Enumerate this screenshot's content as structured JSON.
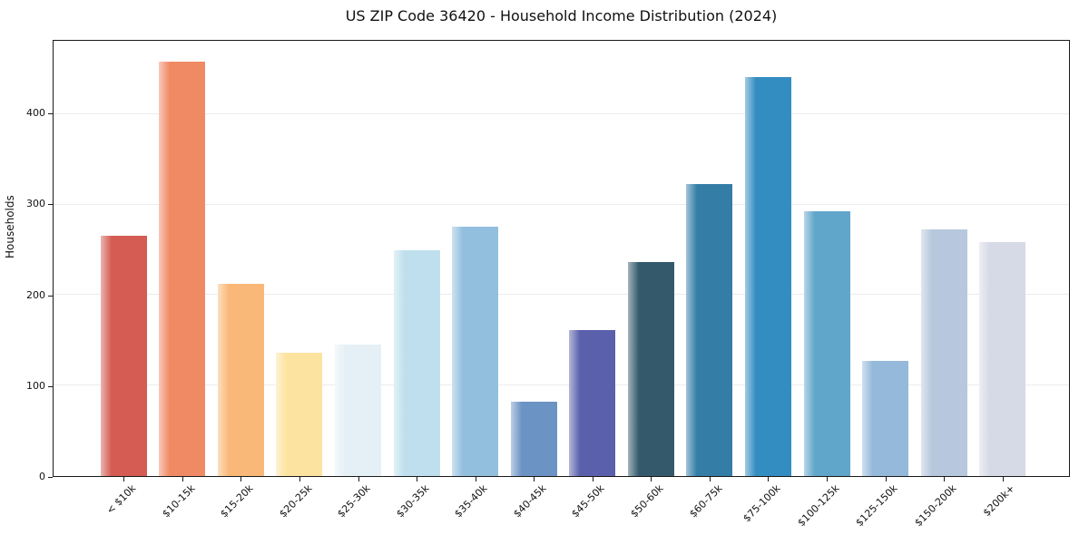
{
  "chart_data": {
    "type": "bar",
    "title": "US ZIP Code 36420 - Household Income Distribution (2024)",
    "xlabel": "",
    "ylabel": "Households",
    "categories": [
      "< $10k",
      "$10-15k",
      "$15-20k",
      "$20-25k",
      "$25-30k",
      "$30-35k",
      "$35-40k",
      "$40-45k",
      "$45-50k",
      "$50-60k",
      "$60-75k",
      "$75-100k",
      "$100-125k",
      "$125-150k",
      "$150-200k",
      "$200k+"
    ],
    "values": [
      266,
      458,
      212,
      136,
      145,
      250,
      276,
      82,
      161,
      237,
      323,
      441,
      293,
      127,
      273,
      259
    ],
    "bar_colors": [
      "#d45c52",
      "#f08a65",
      "#fab878",
      "#fde3a0",
      "#e5f0f6",
      "#bfdfee",
      "#92bfdd",
      "#6b93c4",
      "#5a60ab",
      "#34596b",
      "#347da6",
      "#348dc0",
      "#60a5ca",
      "#94b9da",
      "#b7c8de",
      "#d6d9e6"
    ],
    "yticks": [
      0,
      100,
      200,
      300,
      400
    ],
    "ylim": [
      0,
      481
    ],
    "grid": "horizontal",
    "grid_color": "#ececec",
    "legend": "none"
  }
}
